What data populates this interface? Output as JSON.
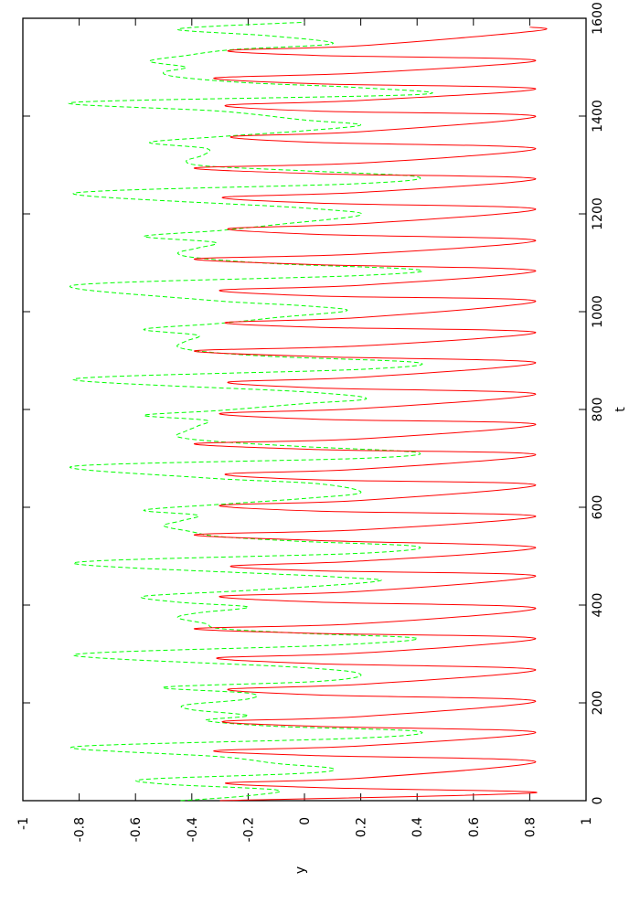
{
  "chart_data": {
    "type": "line",
    "orientation": "rotated-90-clockwise",
    "xlabel": "t",
    "ylabel": "y",
    "xlim": [
      0,
      1600
    ],
    "ylim": [
      -1,
      1
    ],
    "x_ticks": [
      "0",
      "200",
      "400",
      "600",
      "800",
      "1000",
      "1200",
      "1400",
      "1600"
    ],
    "y_ticks": [
      "-1",
      "-0.8",
      "-0.6",
      "-0.4",
      "-0.2",
      "0",
      "0.2",
      "0.4",
      "0.6",
      "0.8",
      "1"
    ],
    "grid": false,
    "series": [
      {
        "style": "solid",
        "color": "#ff0000",
        "x": [
          0,
          16,
          26,
          36,
          46,
          80,
          92,
          102,
          112,
          140,
          152,
          162,
          172,
          204,
          216,
          228,
          238,
          268,
          280,
          292,
          302,
          332,
          342,
          352,
          362,
          394,
          406,
          418,
          428,
          460,
          470,
          480,
          490,
          518,
          532,
          544,
          554,
          582,
          592,
          604,
          614,
          646,
          656,
          668,
          678,
          708,
          718,
          730,
          740,
          770,
          780,
          792,
          802,
          832,
          844,
          856,
          866,
          896,
          908,
          920,
          930,
          958,
          968,
          978,
          988,
          1022,
          1032,
          1044,
          1054,
          1084,
          1096,
          1108,
          1118,
          1146,
          1158,
          1170,
          1180,
          1210,
          1222,
          1234,
          1244,
          1272,
          1282,
          1294,
          1304,
          1334,
          1346,
          1358,
          1368,
          1400,
          1410,
          1422,
          1432,
          1456,
          1466,
          1478,
          1488,
          1514,
          1524,
          1534,
          1544,
          1574,
          1582
        ],
        "y": [
          -0.3,
          0.82,
          0.1,
          -0.28,
          0.2,
          0.82,
          0.05,
          -0.32,
          0.2,
          0.82,
          0.05,
          -0.29,
          0.2,
          0.82,
          0.05,
          -0.27,
          0.2,
          0.82,
          0.05,
          -0.31,
          0.2,
          0.82,
          0.05,
          -0.39,
          0.2,
          0.82,
          0.05,
          -0.3,
          0.2,
          0.82,
          0.05,
          -0.26,
          0.2,
          0.82,
          0.05,
          -0.39,
          0.2,
          0.82,
          0.05,
          -0.3,
          0.2,
          0.82,
          0.05,
          -0.28,
          0.2,
          0.82,
          0.05,
          -0.39,
          0.2,
          0.82,
          0.05,
          -0.3,
          0.2,
          0.82,
          0.05,
          -0.27,
          0.2,
          0.82,
          0.05,
          -0.39,
          0.2,
          0.82,
          0.05,
          -0.28,
          0.2,
          0.82,
          0.05,
          -0.3,
          0.2,
          0.82,
          0.05,
          -0.39,
          0.2,
          0.82,
          0.05,
          -0.27,
          0.2,
          0.82,
          0.05,
          -0.29,
          0.2,
          0.82,
          0.05,
          -0.39,
          0.2,
          0.82,
          0.05,
          -0.26,
          0.2,
          0.82,
          0.05,
          -0.28,
          0.2,
          0.82,
          0.05,
          -0.32,
          0.2,
          0.82,
          0.05,
          -0.27,
          0.2,
          0.82,
          0.8
        ]
      },
      {
        "style": "dashed",
        "color": "#00ff00",
        "x": [
          0,
          10,
          22,
          34,
          44,
          56,
          66,
          76,
          90,
          110,
          128,
          142,
          152,
          164,
          174,
          186,
          196,
          208,
          220,
          232,
          244,
          258,
          272,
          298,
          318,
          332,
          342,
          352,
          362,
          374,
          384,
          396,
          406,
          418,
          430,
          448,
          458,
          486,
          506,
          520,
          530,
          540,
          550,
          562,
          572,
          584,
          594,
          606,
          618,
          630,
          648,
          660,
          684,
          700,
          712,
          724,
          734,
          744,
          756,
          766,
          778,
          788,
          798,
          812,
          822,
          836,
          862,
          882,
          896,
          908,
          918,
          928,
          940,
          952,
          964,
          976,
          988,
          1002,
          1012,
          1024,
          1054,
          1074,
          1086,
          1098,
          1110,
          1120,
          1130,
          1142,
          1154,
          1166,
          1178,
          1198,
          1212,
          1242,
          1262,
          1276,
          1288,
          1298,
          1308,
          1320,
          1334,
          1346,
          1358,
          1370,
          1382,
          1392,
          1410,
          1428,
          1444,
          1458,
          1468,
          1480,
          1490,
          1500,
          1512,
          1524,
          1536,
          1548,
          1564,
          1578,
          1592
        ],
        "y": [
          -0.44,
          -0.2,
          -0.1,
          -0.5,
          -0.56,
          0.0,
          0.1,
          -0.1,
          -0.3,
          -0.82,
          0.2,
          0.4,
          -0.1,
          -0.35,
          -0.2,
          -0.4,
          -0.42,
          -0.2,
          -0.2,
          -0.5,
          0.05,
          0.2,
          0.0,
          -0.82,
          0.1,
          0.4,
          0.0,
          -0.3,
          -0.35,
          -0.45,
          -0.38,
          -0.2,
          -0.45,
          -0.57,
          -0.2,
          0.25,
          0.1,
          -0.82,
          0.2,
          0.4,
          0.0,
          -0.3,
          -0.4,
          -0.5,
          -0.44,
          -0.38,
          -0.57,
          -0.3,
          0.0,
          0.2,
          0.05,
          -0.35,
          -0.82,
          0.2,
          0.4,
          0.0,
          -0.3,
          -0.45,
          -0.42,
          -0.38,
          -0.35,
          -0.57,
          -0.3,
          0.0,
          0.22,
          0.0,
          -0.82,
          0.2,
          0.4,
          -0.1,
          -0.35,
          -0.45,
          -0.42,
          -0.38,
          -0.57,
          -0.3,
          -0.1,
          0.15,
          0.0,
          -0.35,
          -0.82,
          0.2,
          0.4,
          -0.1,
          -0.38,
          -0.45,
          -0.38,
          -0.32,
          -0.57,
          -0.3,
          -0.1,
          0.2,
          0.0,
          -0.82,
          0.2,
          0.4,
          0.0,
          -0.35,
          -0.42,
          -0.36,
          -0.35,
          -0.55,
          -0.3,
          0.0,
          0.2,
          0.0,
          -0.3,
          -0.82,
          0.4,
          0.2,
          -0.2,
          -0.45,
          -0.5,
          -0.42,
          -0.55,
          -0.42,
          -0.25,
          0.1,
          -0.12,
          -0.45,
          0.0
        ]
      }
    ]
  }
}
